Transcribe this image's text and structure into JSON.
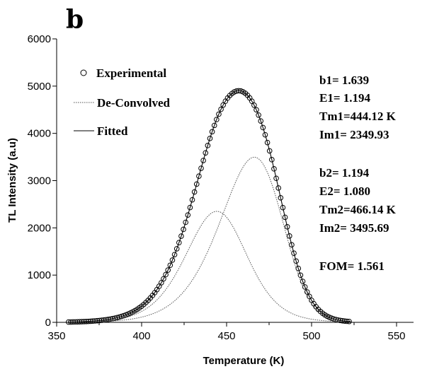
{
  "chart_data": {
    "type": "scatter",
    "panel_label": "b",
    "xlabel": "Temperature (K)",
    "ylabel": "TL Intensity (a.u)",
    "xlim": [
      350,
      560
    ],
    "ylim": [
      0,
      6000
    ],
    "x_ticks": [
      "350",
      "400",
      "450",
      "500",
      "550"
    ],
    "y_ticks": [
      "0",
      "1000",
      "2000",
      "3000",
      "4000",
      "5000",
      "6000"
    ],
    "legend": {
      "placement": "top-left",
      "entries": [
        "Experimental",
        "De-Convolved",
        "Fitted"
      ]
    },
    "series": [
      {
        "name": "Experimental",
        "style": "open-circles",
        "peaks": [
          [
            1.639,
            1.194,
            444.12,
            2349.93
          ],
          [
            1.194,
            1.08,
            466.14,
            3495.69
          ]
        ],
        "x_range": [
          357,
          523
        ],
        "step": 1.3
      },
      {
        "name": "De-Convolved",
        "style": "dotted",
        "peak": [
          1.639,
          1.194,
          444.12,
          2349.93
        ],
        "x_range": [
          357,
          523
        ]
      },
      {
        "name": "De-Convolved",
        "style": "dotted",
        "peak": [
          1.194,
          1.08,
          466.14,
          3495.69
        ],
        "x_range": [
          357,
          523
        ]
      },
      {
        "name": "Fitted",
        "style": "solid",
        "peaks": [
          [
            1.639,
            1.194,
            444.12,
            2349.93
          ],
          [
            1.194,
            1.08,
            466.14,
            3495.69
          ]
        ],
        "x_range": [
          357,
          523
        ]
      }
    ],
    "annotations": [
      "b1=  1.639",
      "E1=  1.194",
      "Tm1=444.12 K",
      "Im1= 2349.93",
      "b2=  1.194",
      "E2=  1.080",
      "Tm2=466.14 K",
      "Im2= 3495.69",
      "FOM= 1.561"
    ],
    "colors": {
      "data": "#000000",
      "deconvolved": "#555555",
      "axis": "#000000"
    },
    "grid": false
  }
}
